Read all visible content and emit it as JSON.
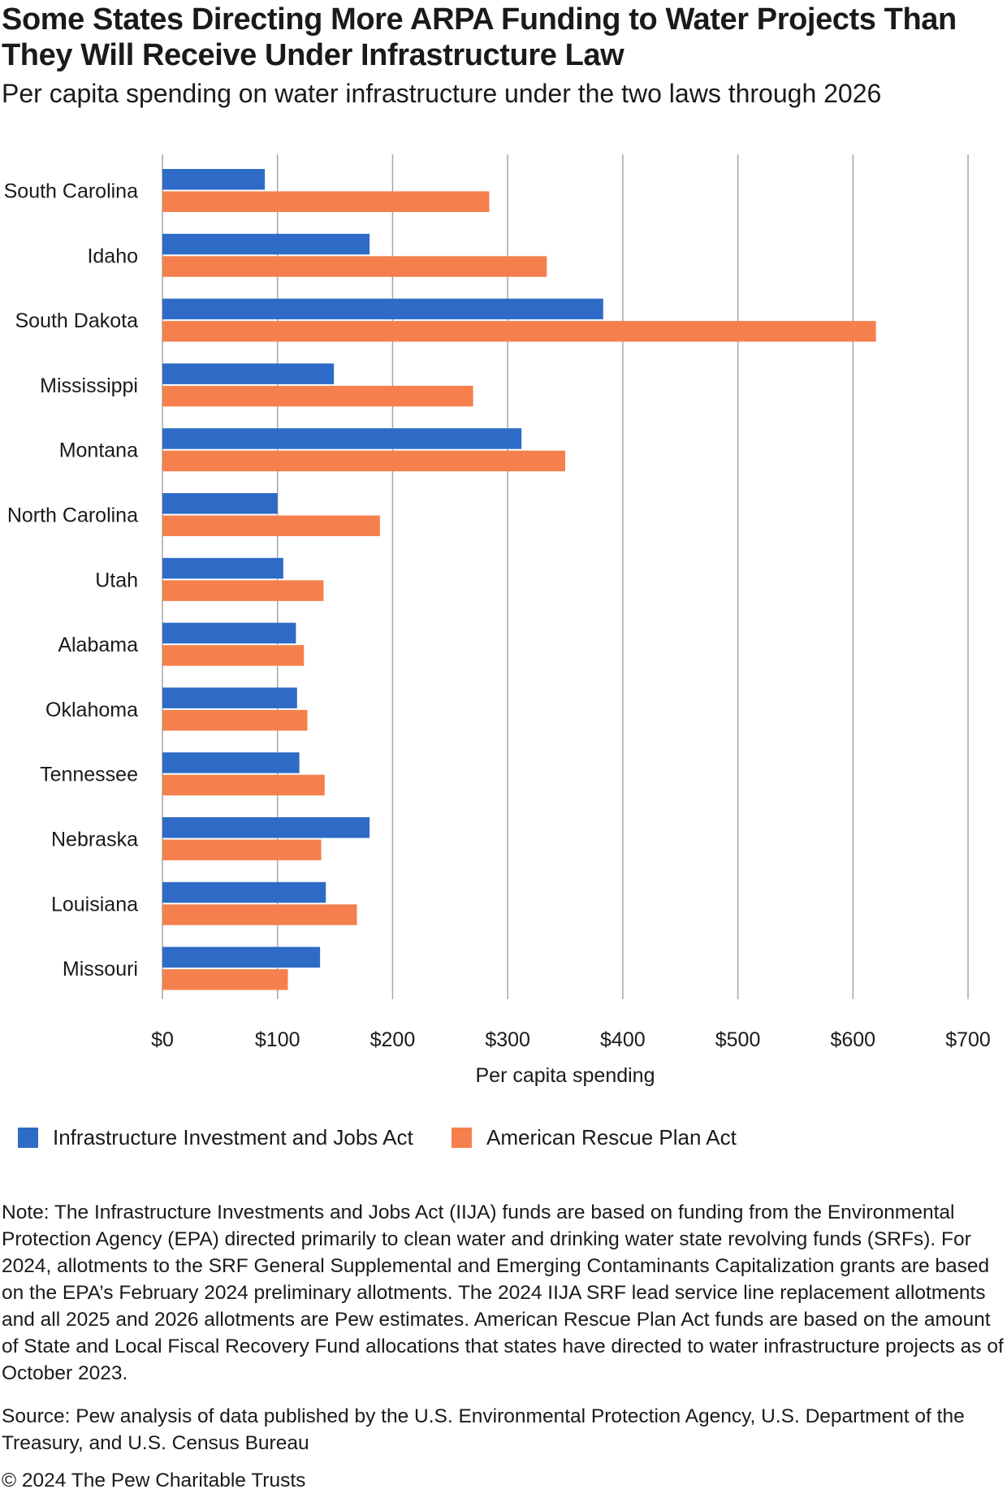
{
  "title": "Some States Directing More ARPA Funding to Water Projects Than They Will Receive Under Infrastructure Law",
  "subtitle": "Per capita spending on water infrastructure under the two laws through 2026",
  "colors": {
    "iija": "#2e6bc6",
    "arpa": "#f5804d",
    "grid": "#a6a6a6"
  },
  "chart_data": {
    "type": "bar",
    "orientation": "horizontal",
    "categories": [
      "South Carolina",
      "Idaho",
      "South Dakota",
      "Mississippi",
      "Montana",
      "North Carolina",
      "Utah",
      "Alabama",
      "Oklahoma",
      "Tennessee",
      "Nebraska",
      "Louisiana",
      "Missouri"
    ],
    "series": [
      {
        "name": "Infrastructure Investment and Jobs Act",
        "color": "#2e6bc6",
        "values": [
          89,
          180,
          383,
          149,
          312,
          100,
          105,
          116,
          117,
          119,
          180,
          142,
          137
        ]
      },
      {
        "name": "American Rescue Plan Act",
        "color": "#f5804d",
        "values": [
          284,
          334,
          620,
          270,
          350,
          189,
          140,
          123,
          126,
          141,
          138,
          169,
          109
        ]
      }
    ],
    "xlabel": "Per capita spending",
    "ylabel": "",
    "xlim": [
      0,
      700
    ],
    "xticks": [
      0,
      100,
      200,
      300,
      400,
      500,
      600,
      700
    ],
    "tick_labels": [
      "$0",
      "$100",
      "$200",
      "$300",
      "$400",
      "$500",
      "$600",
      "$700"
    ],
    "grid": "vertical",
    "legend": "bottom-left"
  },
  "note": "Note: The Infrastructure Investments and Jobs Act (IIJA) funds are based on funding from the Environmental Protection Agency (EPA) directed primarily to clean water and drinking water state revolving funds (SRFs). For 2024, allotments to the SRF General Supplemental and Emerging Contaminants Capitalization grants are based on the EPA’s February 2024 preliminary allotments. The 2024 IIJA SRF lead service line replacement allotments and all 2025 and 2026 allotments are Pew estimates. American Rescue Plan Act funds are based on the amount of State and Local Fiscal Recovery Fund allocations that states have directed to water infrastructure projects as of October 2023.",
  "source": "Source: Pew analysis of data published by the U.S. Environmental Protection Agency, U.S. Department of the Treasury, and U.S. Census Bureau",
  "copyright": "© 2024 The Pew Charitable Trusts"
}
